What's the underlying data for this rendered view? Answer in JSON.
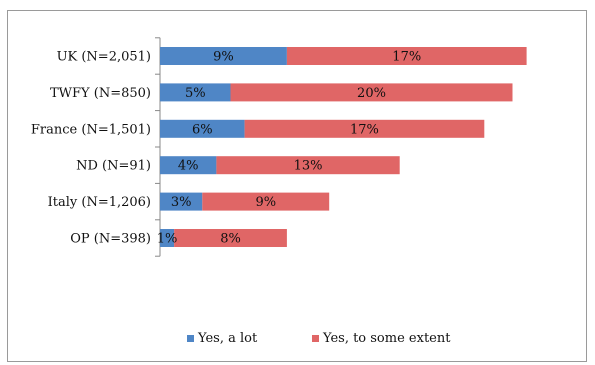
{
  "chart_data": {
    "type": "bar",
    "orientation": "horizontal",
    "stacked": true,
    "categories": [
      "UK (N=2,051)",
      "TWFY (N=850)",
      "France (N=1,501)",
      "ND (N=91)",
      "Italy (N=1,206)",
      "OP (N=398)"
    ],
    "series": [
      {
        "name": "Yes, a lot",
        "values": [
          9,
          5,
          6,
          4,
          3,
          1
        ],
        "color": "#4f86c6"
      },
      {
        "name": "Yes, to some extent",
        "values": [
          17,
          20,
          17,
          13,
          9,
          8
        ],
        "color": "#e06666"
      }
    ],
    "data_labels": [
      [
        "9%",
        "5%",
        "6%",
        "4%",
        "3%",
        "1%"
      ],
      [
        "17%",
        "20%",
        "17%",
        "13%",
        "9%",
        "8%"
      ]
    ],
    "xlim": [
      0,
      28
    ],
    "grid": false,
    "legend_position": "bottom",
    "title": "",
    "xlabel": "",
    "ylabel": ""
  }
}
